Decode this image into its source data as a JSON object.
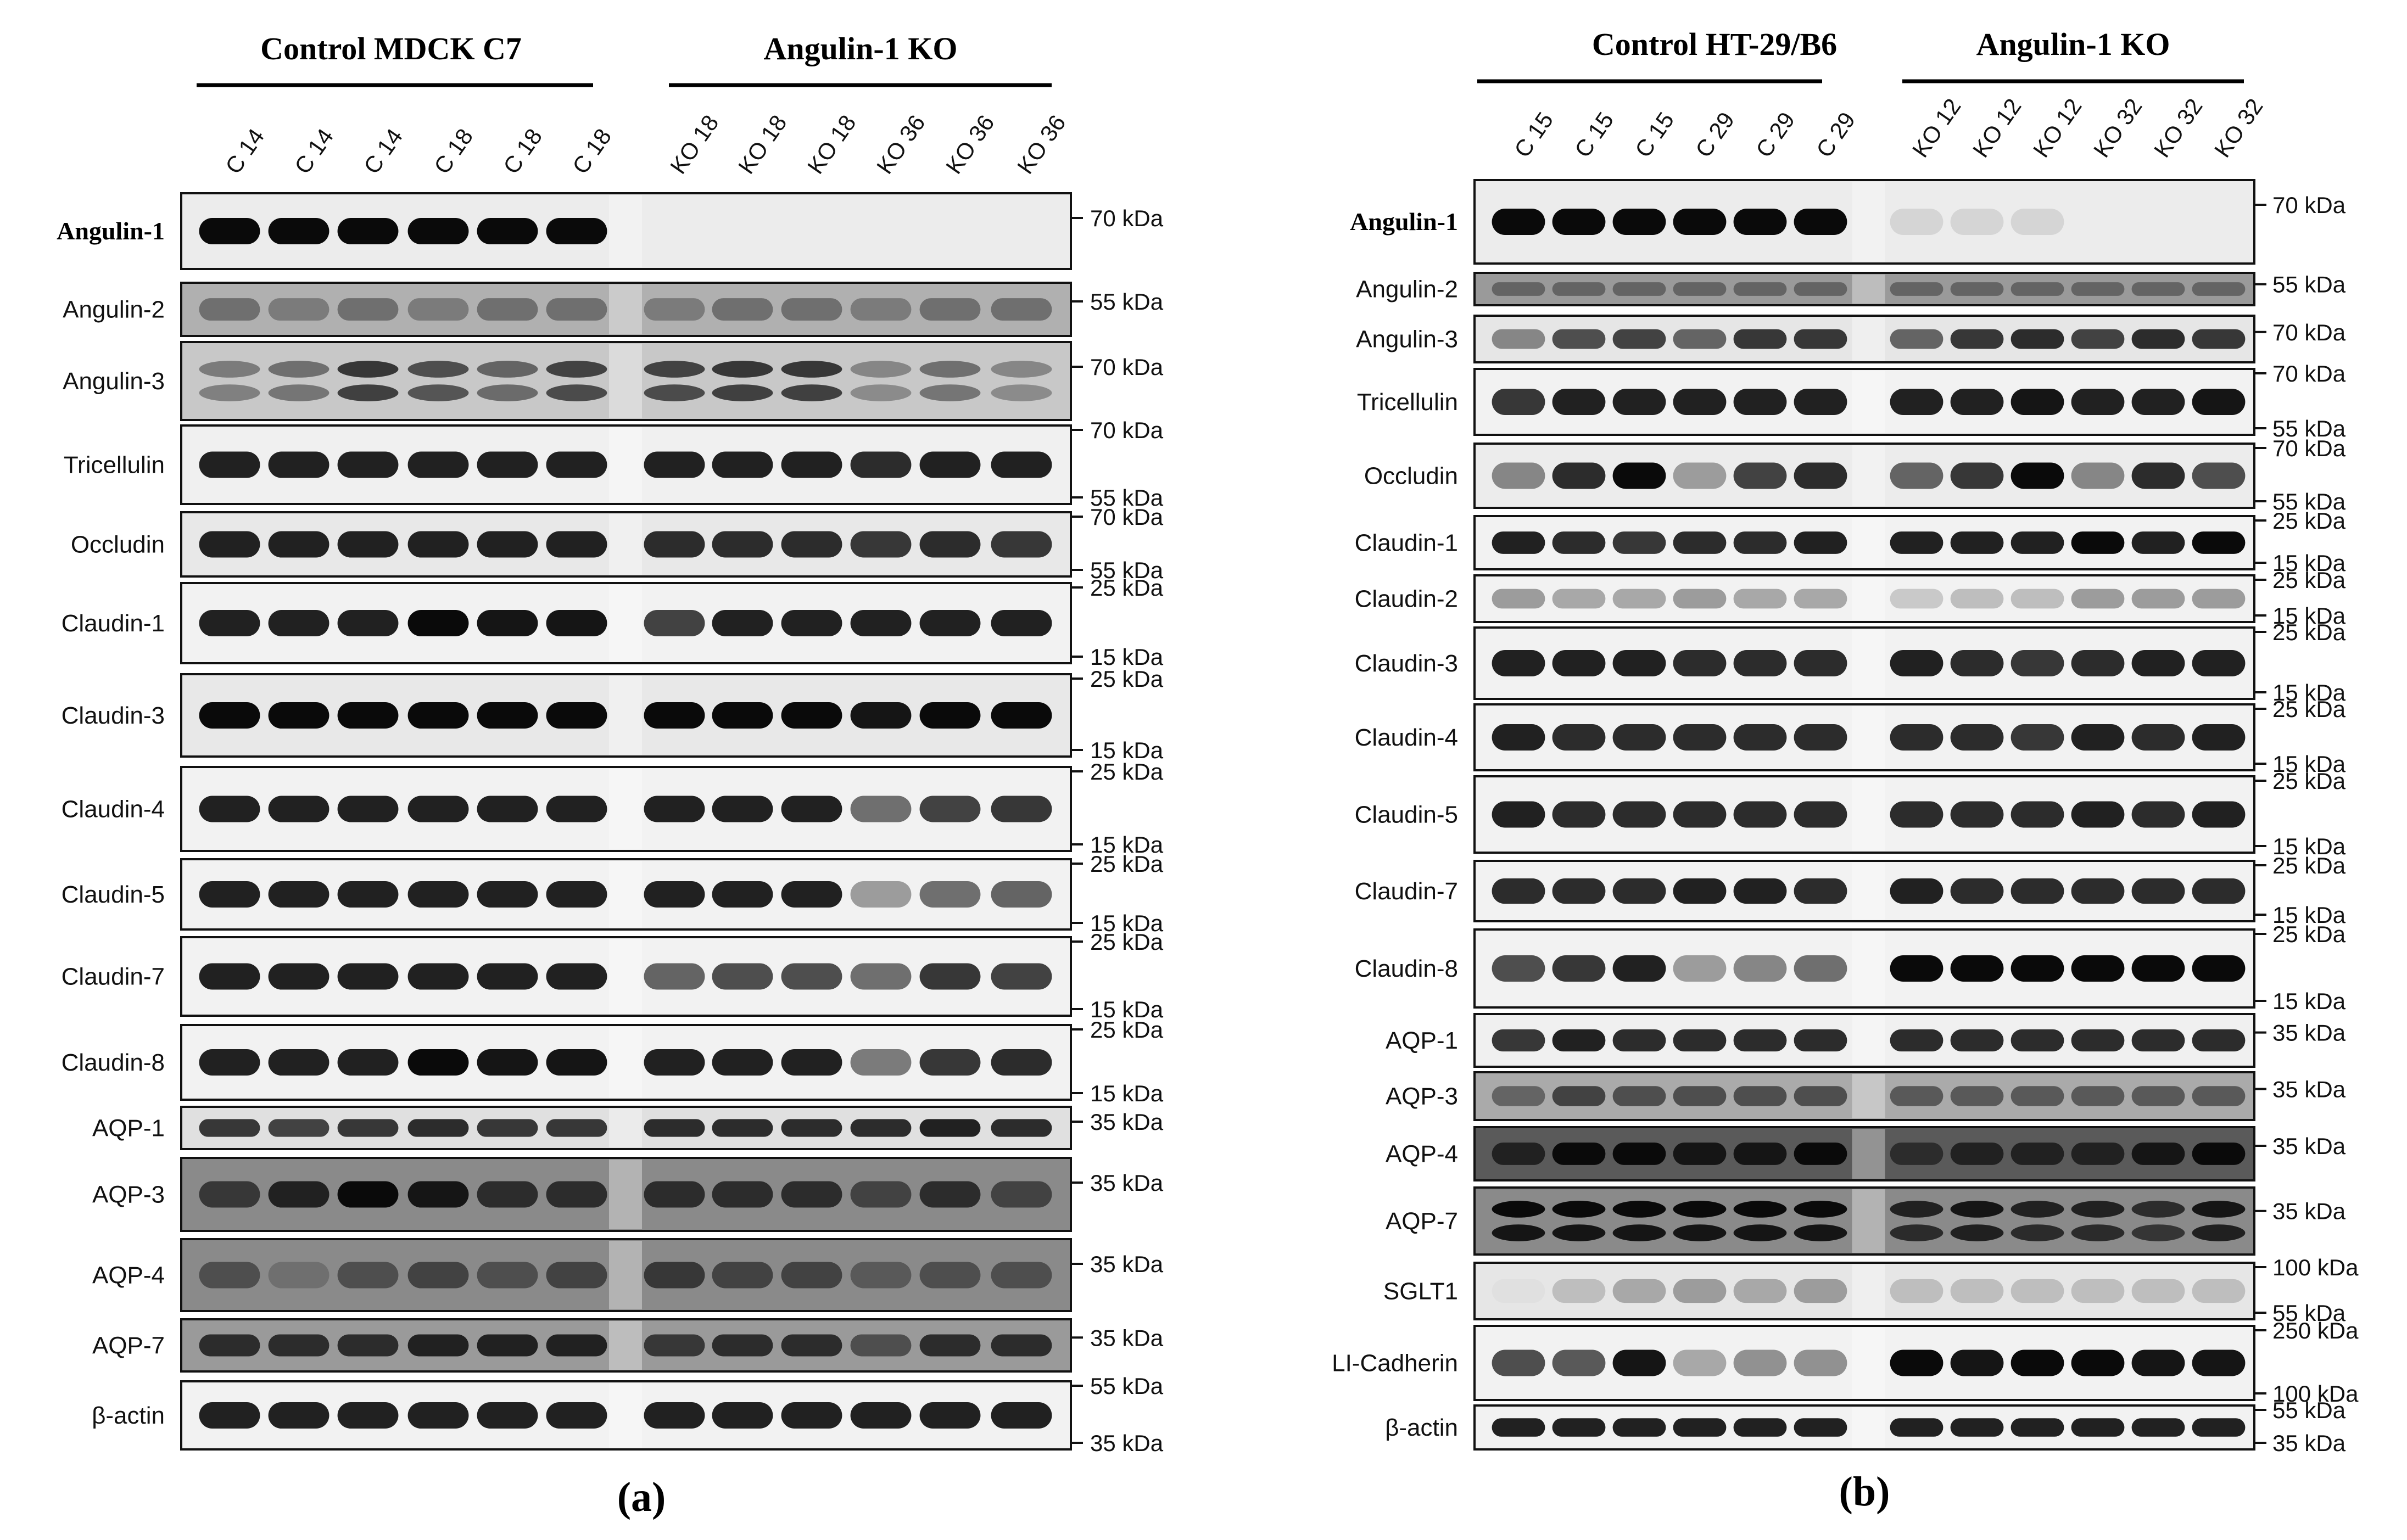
{
  "panels": [
    {
      "id": "a",
      "label": "(a)",
      "groups": [
        {
          "title": "Control MDCK C7",
          "lanes": [
            "C 14",
            "C 14",
            "C 14",
            "C 18",
            "C 18",
            "C 18"
          ]
        },
        {
          "title": "Angulin-1 KO",
          "lanes": [
            "KO 18",
            "KO 18",
            "KO 18",
            "KO 36",
            "KO 36",
            "KO 36"
          ]
        }
      ],
      "rows": [
        {
          "label": "Angulin-1",
          "bold": true,
          "bg": "#ececec",
          "markers": [
            "70 kDa"
          ],
          "intensity": [
            1,
            1,
            1,
            1,
            1,
            1,
            0,
            0,
            0,
            0,
            0,
            0
          ],
          "doubleBand": false
        },
        {
          "label": "Angulin-2",
          "bold": false,
          "bg": "#b0b0b0",
          "markers": [
            "55 kDa"
          ],
          "intensity": [
            0.55,
            0.5,
            0.55,
            0.5,
            0.55,
            0.55,
            0.5,
            0.55,
            0.55,
            0.5,
            0.55,
            0.55
          ],
          "doubleBand": false
        },
        {
          "label": "Angulin-3",
          "bold": false,
          "bg": "#c8c8c8",
          "markers": [
            "70 kDa"
          ],
          "intensity": [
            0.5,
            0.55,
            0.8,
            0.7,
            0.6,
            0.75,
            0.75,
            0.8,
            0.8,
            0.45,
            0.55,
            0.45
          ],
          "doubleBand": true
        },
        {
          "label": "Tricellulin",
          "bold": false,
          "bg": "#f0f0f0",
          "markers": [
            "70 kDa",
            "55 kDa"
          ],
          "intensity": [
            0.9,
            0.9,
            0.9,
            0.9,
            0.9,
            0.9,
            0.9,
            0.9,
            0.9,
            0.85,
            0.9,
            0.9
          ],
          "doubleBand": false
        },
        {
          "label": "Occludin",
          "bold": false,
          "bg": "#e8e8e8",
          "markers": [
            "70 kDa",
            "55 kDa"
          ],
          "intensity": [
            0.9,
            0.9,
            0.9,
            0.9,
            0.9,
            0.9,
            0.85,
            0.85,
            0.85,
            0.8,
            0.85,
            0.8
          ],
          "doubleBand": false
        },
        {
          "label": "Claudin-1",
          "bold": false,
          "bg": "#f2f2f2",
          "markers": [
            "25 kDa",
            "15 kDa"
          ],
          "intensity": [
            0.9,
            0.9,
            0.9,
            1,
            0.95,
            0.95,
            0.75,
            0.9,
            0.9,
            0.9,
            0.9,
            0.9
          ],
          "doubleBand": false
        },
        {
          "label": "Claudin-3",
          "bold": false,
          "bg": "#e8e8e8",
          "markers": [
            "25 kDa",
            "15 kDa"
          ],
          "intensity": [
            1,
            1,
            1,
            1,
            1,
            1,
            1,
            1,
            1,
            0.95,
            1,
            1
          ],
          "doubleBand": false
        },
        {
          "label": "Claudin-4",
          "bold": false,
          "bg": "#f2f2f2",
          "markers": [
            "25 kDa",
            "15 kDa"
          ],
          "intensity": [
            0.9,
            0.9,
            0.9,
            0.9,
            0.9,
            0.9,
            0.9,
            0.9,
            0.9,
            0.55,
            0.75,
            0.8
          ],
          "doubleBand": false
        },
        {
          "label": "Claudin-5",
          "bold": false,
          "bg": "#f2f2f2",
          "markers": [
            "25 kDa",
            "15 kDa"
          ],
          "intensity": [
            0.9,
            0.9,
            0.9,
            0.9,
            0.9,
            0.9,
            0.9,
            0.9,
            0.9,
            0.35,
            0.55,
            0.6
          ],
          "doubleBand": false
        },
        {
          "label": "Claudin-7",
          "bold": false,
          "bg": "#f2f2f2",
          "markers": [
            "25 kDa",
            "15 kDa"
          ],
          "intensity": [
            0.9,
            0.9,
            0.9,
            0.9,
            0.9,
            0.9,
            0.6,
            0.7,
            0.7,
            0.55,
            0.8,
            0.75
          ],
          "doubleBand": false
        },
        {
          "label": "Claudin-8",
          "bold": false,
          "bg": "#f2f2f2",
          "markers": [
            "25 kDa",
            "15 kDa"
          ],
          "intensity": [
            0.9,
            0.9,
            0.9,
            1,
            0.95,
            0.95,
            0.9,
            0.9,
            0.9,
            0.5,
            0.8,
            0.85
          ],
          "doubleBand": false
        },
        {
          "label": "AQP-1",
          "bold": false,
          "bg": "#e0e0e0",
          "markers": [
            "35 kDa"
          ],
          "intensity": [
            0.8,
            0.75,
            0.8,
            0.85,
            0.8,
            0.8,
            0.85,
            0.85,
            0.85,
            0.85,
            0.9,
            0.85
          ],
          "doubleBand": false
        },
        {
          "label": "AQP-3",
          "bold": false,
          "bg": "#8a8a8a",
          "markers": [
            "35 kDa"
          ],
          "intensity": [
            0.8,
            0.9,
            1,
            0.95,
            0.85,
            0.85,
            0.85,
            0.85,
            0.85,
            0.75,
            0.85,
            0.75
          ],
          "doubleBand": false
        },
        {
          "label": "AQP-4",
          "bold": false,
          "bg": "#8a8a8a",
          "markers": [
            "35 kDa"
          ],
          "intensity": [
            0.7,
            0.55,
            0.7,
            0.75,
            0.7,
            0.75,
            0.8,
            0.75,
            0.75,
            0.65,
            0.7,
            0.7
          ],
          "doubleBand": false
        },
        {
          "label": "AQP-7",
          "bold": false,
          "bg": "#9a9a9a",
          "markers": [
            "35 kDa"
          ],
          "intensity": [
            0.85,
            0.85,
            0.85,
            0.9,
            0.9,
            0.9,
            0.8,
            0.85,
            0.85,
            0.7,
            0.85,
            0.85
          ],
          "doubleBand": false
        },
        {
          "label": "β-actin",
          "bold": false,
          "bg": "#f2f2f2",
          "markers": [
            "55 kDa",
            "35 kDa"
          ],
          "intensity": [
            0.9,
            0.9,
            0.9,
            0.9,
            0.9,
            0.9,
            0.9,
            0.9,
            0.9,
            0.9,
            0.9,
            0.9
          ],
          "doubleBand": false
        }
      ]
    },
    {
      "id": "b",
      "label": "(b)",
      "groups": [
        {
          "title": "Control HT-29/B6",
          "lanes": [
            "C 15",
            "C 15",
            "C 15",
            "C 29",
            "C 29",
            "C 29"
          ]
        },
        {
          "title": "Angulin-1 KO",
          "lanes": [
            "KO 12",
            "KO 12",
            "KO 12",
            "KO 32",
            "KO 32",
            "KO 32"
          ]
        }
      ],
      "rows": [
        {
          "label": "Angulin-1",
          "bold": true,
          "bg": "#ececec",
          "markers": [
            "70 kDa"
          ],
          "intensity": [
            1,
            1,
            1,
            1,
            1,
            1,
            0.1,
            0.1,
            0.1,
            0,
            0,
            0
          ],
          "doubleBand": false
        },
        {
          "label": "Angulin-2",
          "bold": false,
          "bg": "#9a9a9a",
          "markers": [
            "55 kDa"
          ],
          "intensity": [
            0.6,
            0.6,
            0.6,
            0.6,
            0.6,
            0.6,
            0.6,
            0.6,
            0.6,
            0.6,
            0.6,
            0.6
          ],
          "doubleBand": false
        },
        {
          "label": "Angulin-3",
          "bold": false,
          "bg": "#e6e6e6",
          "markers": [
            "70 kDa"
          ],
          "intensity": [
            0.45,
            0.7,
            0.75,
            0.6,
            0.8,
            0.8,
            0.6,
            0.8,
            0.85,
            0.75,
            0.85,
            0.8
          ],
          "doubleBand": false
        },
        {
          "label": "Tricellulin",
          "bold": false,
          "bg": "#f2f2f2",
          "markers": [
            "70 kDa",
            "55 kDa"
          ],
          "intensity": [
            0.8,
            0.9,
            0.9,
            0.9,
            0.9,
            0.9,
            0.9,
            0.9,
            0.95,
            0.9,
            0.9,
            0.95
          ],
          "doubleBand": false
        },
        {
          "label": "Occludin",
          "bold": false,
          "bg": "#ececec",
          "markers": [
            "70 kDa",
            "55 kDa"
          ],
          "intensity": [
            0.45,
            0.85,
            1,
            0.35,
            0.75,
            0.85,
            0.6,
            0.8,
            1,
            0.45,
            0.85,
            0.7
          ],
          "doubleBand": false
        },
        {
          "label": "Claudin-1",
          "bold": false,
          "bg": "#f2f2f2",
          "markers": [
            "25 kDa",
            "15 kDa"
          ],
          "intensity": [
            0.9,
            0.85,
            0.8,
            0.85,
            0.85,
            0.9,
            0.9,
            0.9,
            0.9,
            1,
            0.9,
            1
          ],
          "doubleBand": false
        },
        {
          "label": "Claudin-2",
          "bold": false,
          "bg": "#f2f2f2",
          "markers": [
            "25 kDa",
            "15 kDa"
          ],
          "intensity": [
            0.35,
            0.3,
            0.3,
            0.35,
            0.3,
            0.3,
            0.15,
            0.2,
            0.2,
            0.35,
            0.35,
            0.35
          ],
          "doubleBand": false
        },
        {
          "label": "Claudin-3",
          "bold": false,
          "bg": "#f2f2f2",
          "markers": [
            "25 kDa",
            "15 kDa"
          ],
          "intensity": [
            0.9,
            0.9,
            0.9,
            0.85,
            0.85,
            0.85,
            0.9,
            0.85,
            0.8,
            0.85,
            0.9,
            0.9
          ],
          "doubleBand": false
        },
        {
          "label": "Claudin-4",
          "bold": false,
          "bg": "#f2f2f2",
          "markers": [
            "25 kDa",
            "15 kDa"
          ],
          "intensity": [
            0.9,
            0.85,
            0.85,
            0.85,
            0.85,
            0.85,
            0.85,
            0.85,
            0.8,
            0.9,
            0.85,
            0.9
          ],
          "doubleBand": false
        },
        {
          "label": "Claudin-5",
          "bold": false,
          "bg": "#f2f2f2",
          "markers": [
            "25 kDa",
            "15 kDa"
          ],
          "intensity": [
            0.9,
            0.85,
            0.85,
            0.85,
            0.85,
            0.85,
            0.85,
            0.85,
            0.85,
            0.9,
            0.85,
            0.9
          ],
          "doubleBand": false
        },
        {
          "label": "Claudin-7",
          "bold": false,
          "bg": "#f2f2f2",
          "markers": [
            "25 kDa",
            "15 kDa"
          ],
          "intensity": [
            0.85,
            0.85,
            0.85,
            0.9,
            0.9,
            0.85,
            0.9,
            0.85,
            0.85,
            0.85,
            0.85,
            0.85
          ],
          "doubleBand": false
        },
        {
          "label": "Claudin-8",
          "bold": false,
          "bg": "#f2f2f2",
          "markers": [
            "25 kDa",
            "15 kDa"
          ],
          "intensity": [
            0.7,
            0.8,
            0.9,
            0.35,
            0.45,
            0.55,
            1,
            1,
            1,
            1,
            1,
            1
          ],
          "doubleBand": false
        },
        {
          "label": "AQP-1",
          "bold": false,
          "bg": "#f0f0f0",
          "markers": [
            "35 kDa"
          ],
          "intensity": [
            0.8,
            0.9,
            0.85,
            0.85,
            0.85,
            0.85,
            0.85,
            0.85,
            0.85,
            0.85,
            0.85,
            0.85
          ],
          "doubleBand": false
        },
        {
          "label": "AQP-3",
          "bold": false,
          "bg": "#aaaaaa",
          "markers": [
            "35 kDa"
          ],
          "intensity": [
            0.6,
            0.75,
            0.7,
            0.7,
            0.7,
            0.7,
            0.65,
            0.65,
            0.65,
            0.65,
            0.65,
            0.65
          ],
          "doubleBand": false
        },
        {
          "label": "AQP-4",
          "bold": false,
          "bg": "#5a5a5a",
          "markers": [
            "35 kDa"
          ],
          "intensity": [
            0.9,
            1,
            1,
            0.95,
            0.95,
            1,
            0.85,
            0.9,
            0.9,
            0.9,
            0.95,
            1
          ],
          "doubleBand": false
        },
        {
          "label": "AQP-7",
          "bold": false,
          "bg": "#8a8a8a",
          "markers": [
            "35 kDa"
          ],
          "intensity": [
            1,
            1,
            1,
            1,
            1,
            1,
            0.9,
            0.95,
            0.9,
            0.9,
            0.85,
            0.95
          ],
          "doubleBand": true
        },
        {
          "label": "SGLT1",
          "bold": false,
          "bg": "#e6e6e6",
          "markers": [
            "100 kDa",
            "55 kDa"
          ],
          "intensity": [
            0.05,
            0.2,
            0.3,
            0.35,
            0.3,
            0.35,
            0.2,
            0.2,
            0.2,
            0.2,
            0.2,
            0.2
          ],
          "doubleBand": false
        },
        {
          "label": "LI-Cadherin",
          "bold": false,
          "bg": "#f2f2f2",
          "markers": [
            "250 kDa",
            "100 kDa"
          ],
          "intensity": [
            0.7,
            0.65,
            0.95,
            0.3,
            0.4,
            0.4,
            1,
            0.95,
            1,
            1,
            0.95,
            0.95
          ],
          "doubleBand": false
        },
        {
          "label": "β-actin",
          "bold": false,
          "bg": "#f2f2f2",
          "markers": [
            "55 kDa",
            "35 kDa"
          ],
          "intensity": [
            0.9,
            0.9,
            0.9,
            0.9,
            0.9,
            0.9,
            0.9,
            0.9,
            0.9,
            0.9,
            0.9,
            0.9
          ],
          "doubleBand": false
        }
      ]
    }
  ]
}
